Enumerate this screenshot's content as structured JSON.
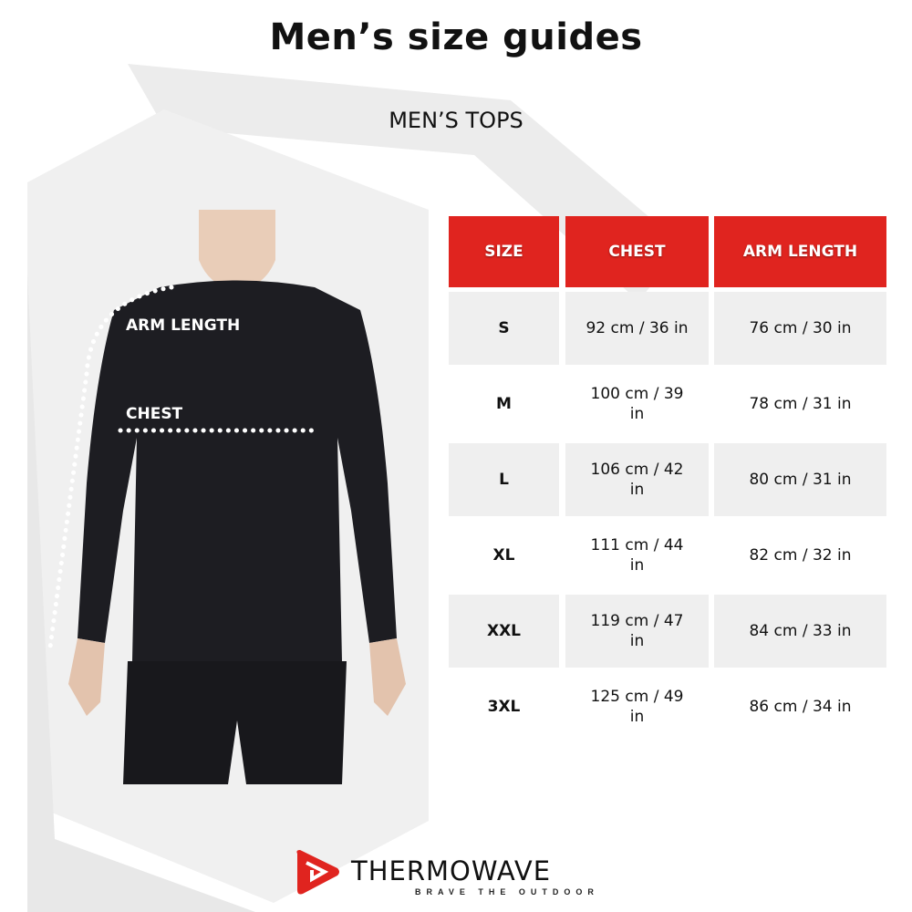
{
  "title": "Men’s size guides",
  "subtitle": "MEN’S TOPS",
  "table": {
    "headers": [
      "SIZE",
      "CHEST",
      "ARM LENGTH"
    ],
    "rows": [
      {
        "size": "S",
        "chest": "92 cm / 36 in",
        "arm": "76 cm / 30 in"
      },
      {
        "size": "M",
        "chest": "100 cm / 39 in",
        "arm": "78 cm / 31 in"
      },
      {
        "size": "L",
        "chest": "106 cm / 42 in",
        "arm": "80 cm / 31 in"
      },
      {
        "size": "XL",
        "chest": "111 cm / 44 in",
        "arm": "82 cm / 32 in"
      },
      {
        "size": "XXL",
        "chest": "119 cm / 47 in",
        "arm": "84 cm / 33 in"
      },
      {
        "size": "3XL",
        "chest": "125 cm / 49 in",
        "arm": "86 cm / 34 in"
      }
    ]
  },
  "figure": {
    "arm_label": "ARM LENGTH",
    "chest_label": "CHEST"
  },
  "brand": {
    "name": "THERMOWAVE",
    "tagline": "BRAVE THE OUTDOOR"
  },
  "colors": {
    "header_red": "#e0241f",
    "row_gray": "#efefef"
  }
}
